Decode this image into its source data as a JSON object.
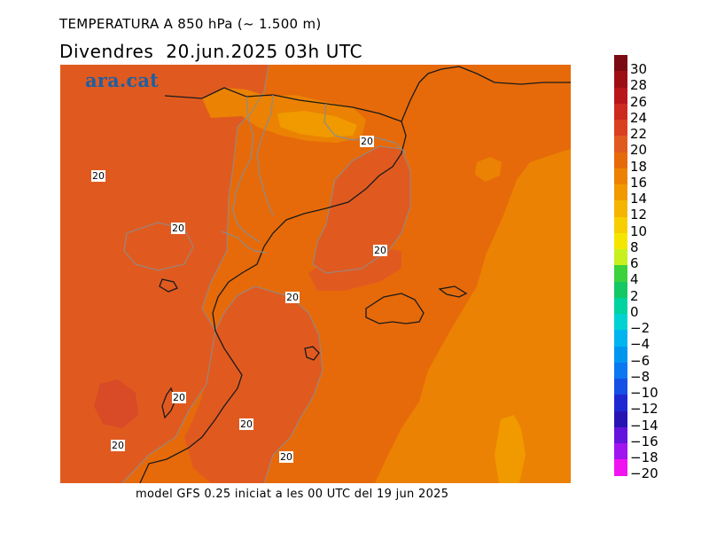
{
  "header": {
    "title": "TEMPERATURA A 850 hPa (~ 1.500 m)",
    "subtitle": "Divendres  20.jun.2025 03h UTC"
  },
  "footer": {
    "text": "model GFS 0.25 iniciat a les 00 UTC del 19 jun 2025"
  },
  "logo": {
    "text": "ara.cat"
  },
  "map": {
    "contour_labels": [
      "20",
      "20",
      "20",
      "20",
      "20",
      "20",
      "20",
      "20",
      "20"
    ],
    "colors": {
      "t22_24": "#d94a26",
      "t20_22": "#e05a20",
      "t18_20": "#e66a0a",
      "t16_18": "#eb8203",
      "t14_16": "#f09a00",
      "coast": "#1a1a1a",
      "border": "#8c8c8c"
    }
  },
  "colorbar": {
    "labels": [
      "30",
      "28",
      "26",
      "24",
      "22",
      "20",
      "18",
      "16",
      "14",
      "12",
      "10",
      "8",
      "6",
      "4",
      "2",
      "0",
      "−2",
      "−4",
      "−6",
      "−8",
      "−10",
      "−12",
      "−14",
      "−16",
      "−18",
      "−20"
    ],
    "colors": [
      "#7a0a14",
      "#9e0f14",
      "#b8161a",
      "#cc2a1e",
      "#d9401f",
      "#e05a20",
      "#e66a0a",
      "#eb8203",
      "#f09a00",
      "#f5b400",
      "#f7cf00",
      "#f5e600",
      "#c8f01e",
      "#3cd23c",
      "#14c864",
      "#00d2a0",
      "#00d2d2",
      "#00b4f0",
      "#0096f0",
      "#0a78f0",
      "#1450e6",
      "#1e28d2",
      "#2814b4",
      "#6414dc",
      "#a014f0",
      "#f014f0"
    ]
  }
}
